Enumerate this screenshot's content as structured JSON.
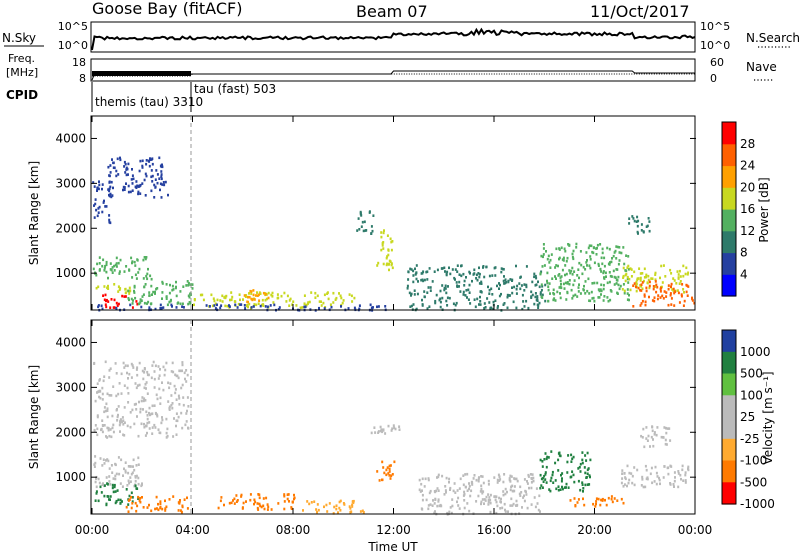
{
  "header": {
    "station": "Goose Bay (fitACF)",
    "beam": "Beam 07",
    "date": "11/Oct/2017"
  },
  "params": {
    "nsky_label": "N.Sky",
    "nsky_ticks": [
      "10^5",
      "10^0"
    ],
    "nsearch_label": "N.Search",
    "nsearch_ticks": [
      "10^5",
      "10^0"
    ],
    "freq_label_1": "Freq.",
    "freq_label_2": "[MHz]",
    "freq_ticks": [
      "18",
      "8"
    ],
    "nave_label": "Nave",
    "nave_ticks": [
      "60",
      "0"
    ],
    "cpid_label": "CPID",
    "cpid_1": "themis (tau) 3310",
    "cpid_2": "tau (fast) 503"
  },
  "colors": {
    "power": [
      "#0000ff",
      "#2540a0",
      "#2e7a6a",
      "#53b060",
      "#c8d820",
      "#ffa000",
      "#ff6000",
      "#ff0000"
    ],
    "velocity": [
      "#ff0000",
      "#ff7a00",
      "#ffaa30",
      "#bbbbbb",
      "#bbbbbb",
      "#60c040",
      "#208040",
      "#2040a0"
    ]
  },
  "chart_data": [
    {
      "type": "heatmap",
      "name": "power",
      "ylabel": "Slant Range [km]",
      "xlabel": "",
      "yticks": [
        "1000",
        "2000",
        "3000",
        "4000"
      ],
      "ylim": [
        180,
        4500
      ],
      "xlim": [
        0,
        24
      ],
      "colorbar_label": "Power [dB]",
      "colorbar_ticks": [
        "4",
        "8",
        "12",
        "16",
        "20",
        "24",
        "28"
      ],
      "regions": [
        {
          "t": [
            0.0,
            0.7
          ],
          "r": [
            2100,
            3100
          ],
          "v": 7
        },
        {
          "t": [
            0.6,
            3.0
          ],
          "r": [
            2700,
            3600
          ],
          "v": 6
        },
        {
          "t": [
            0.0,
            2.3
          ],
          "r": [
            900,
            1400
          ],
          "v": 12
        },
        {
          "t": [
            0.1,
            1.5
          ],
          "r": [
            520,
            800
          ],
          "v": 18
        },
        {
          "t": [
            0.4,
            1.8
          ],
          "r": [
            250,
            560
          ],
          "v": 28
        },
        {
          "t": [
            1.4,
            4.0
          ],
          "r": [
            300,
            900
          ],
          "v": 13
        },
        {
          "t": [
            4.0,
            10.5
          ],
          "r": [
            250,
            600
          ],
          "v": 17
        },
        {
          "t": [
            6.0,
            7.0
          ],
          "r": [
            380,
            650
          ],
          "v": 22
        },
        {
          "t": [
            0.0,
            11.8
          ],
          "r": [
            200,
            330
          ],
          "v": 5
        },
        {
          "t": [
            10.5,
            11.2
          ],
          "r": [
            1900,
            2400
          ],
          "v": 9
        },
        {
          "t": [
            11.3,
            12.0
          ],
          "r": [
            1100,
            2000
          ],
          "v": 17
        },
        {
          "t": [
            12.5,
            18.0
          ],
          "r": [
            200,
            1200
          ],
          "v": 8
        },
        {
          "t": [
            17.8,
            21.4
          ],
          "r": [
            400,
            1700
          ],
          "v": 12
        },
        {
          "t": [
            21.3,
            22.2
          ],
          "r": [
            1900,
            2300
          ],
          "v": 10
        },
        {
          "t": [
            21.0,
            23.7
          ],
          "r": [
            600,
            1200
          ],
          "v": 19
        },
        {
          "t": [
            21.5,
            22.5
          ],
          "r": [
            280,
            900
          ],
          "v": 26
        },
        {
          "t": [
            22.5,
            24.0
          ],
          "r": [
            300,
            800
          ],
          "v": 24
        }
      ]
    },
    {
      "type": "heatmap",
      "name": "velocity",
      "ylabel": "Slant Range [km]",
      "xlabel": "Time UT",
      "xticks": [
        "00:00",
        "04:00",
        "08:00",
        "12:00",
        "16:00",
        "20:00",
        "00:00"
      ],
      "yticks": [
        "1000",
        "2000",
        "3000",
        "4000"
      ],
      "ylim": [
        180,
        4500
      ],
      "xlim": [
        0,
        24
      ],
      "colorbar_label": "Velocity [m s⁻¹]",
      "colorbar_ticks": [
        "1000",
        "500",
        "100",
        "25",
        "-25",
        "-100",
        "-500",
        "-1000"
      ],
      "regions": [
        {
          "t": [
            0.0,
            3.8
          ],
          "r": [
            1900,
            3600
          ],
          "v": 0
        },
        {
          "t": [
            0.0,
            2.0
          ],
          "r": [
            800,
            1500
          ],
          "v": 0
        },
        {
          "t": [
            0.1,
            1.8
          ],
          "r": [
            400,
            900
          ],
          "v": 150
        },
        {
          "t": [
            1.2,
            3.8
          ],
          "r": [
            250,
            600
          ],
          "v": -150
        },
        {
          "t": [
            5.0,
            8.2
          ],
          "r": [
            300,
            650
          ],
          "v": -200
        },
        {
          "t": [
            8.2,
            10.8
          ],
          "r": [
            220,
            500
          ],
          "v": -40
        },
        {
          "t": [
            11.3,
            12.0
          ],
          "r": [
            900,
            1400
          ],
          "v": -400
        },
        {
          "t": [
            11.0,
            12.2
          ],
          "r": [
            2000,
            2200
          ],
          "v": 0
        },
        {
          "t": [
            13.0,
            17.8
          ],
          "r": [
            200,
            1100
          ],
          "v": 0
        },
        {
          "t": [
            17.8,
            19.8
          ],
          "r": [
            700,
            1600
          ],
          "v": 200
        },
        {
          "t": [
            19.0,
            21.2
          ],
          "r": [
            350,
            600
          ],
          "v": -200
        },
        {
          "t": [
            21.0,
            23.8
          ],
          "r": [
            800,
            1300
          ],
          "v": 0
        },
        {
          "t": [
            21.8,
            23.0
          ],
          "r": [
            1700,
            2200
          ],
          "v": 0
        }
      ]
    }
  ]
}
